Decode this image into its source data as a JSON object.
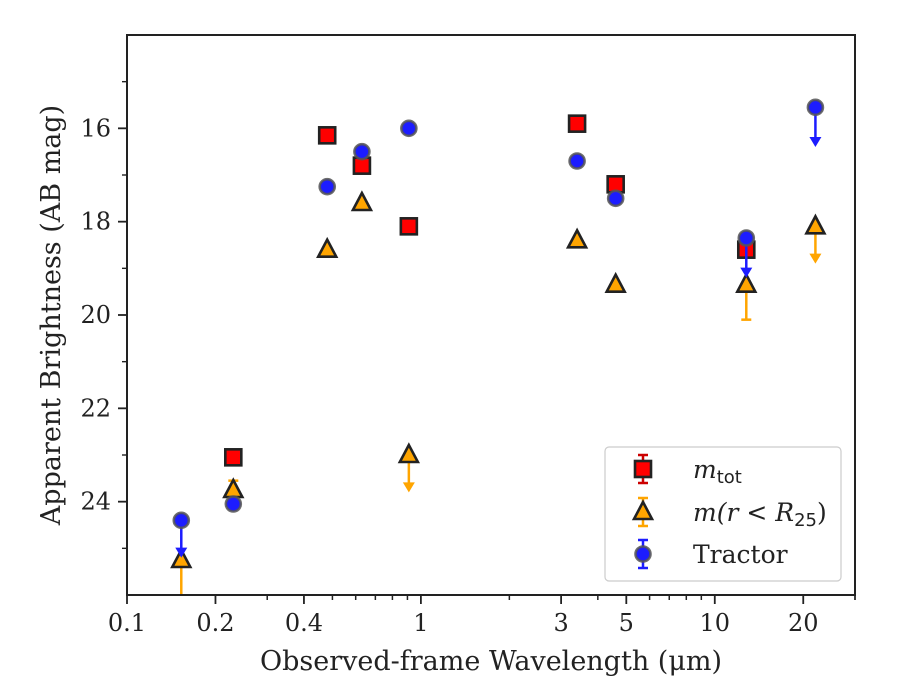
{
  "chart_data": {
    "type": "scatter",
    "xlabel": "Observed-frame Wavelength (μm)",
    "ylabel": "Apparent Brightness (AB mag)",
    "x_scale": "log",
    "xlim": [
      0.1,
      30
    ],
    "ylim": [
      26,
      14
    ],
    "y_inverted": true,
    "grid": false,
    "legend_position": "lower-right",
    "xticks": [
      0.1,
      0.2,
      0.4,
      1,
      3,
      5,
      10,
      20
    ],
    "xtick_labels": [
      "0.1",
      "0.2",
      "0.4",
      "1",
      "3",
      "5",
      "10",
      "20"
    ],
    "yticks": [
      16,
      18,
      20,
      22,
      24
    ],
    "ytick_labels": [
      "16",
      "18",
      "20",
      "22",
      "24"
    ],
    "legend": {
      "m_tot_label": "m",
      "m_tot_sub": "tot",
      "m_r25_label": "m(r < R",
      "m_r25_sub": "25",
      "m_r25_close": ")",
      "tractor_label": "Tractor"
    },
    "series": [
      {
        "name": "m_tot",
        "marker": "square",
        "color": "#ff0000",
        "points": [
          {
            "x": 0.23,
            "y": 23.05
          },
          {
            "x": 0.48,
            "y": 16.15
          },
          {
            "x": 0.63,
            "y": 16.8
          },
          {
            "x": 0.91,
            "y": 18.1
          },
          {
            "x": 3.4,
            "y": 15.9
          },
          {
            "x": 4.6,
            "y": 17.2
          },
          {
            "x": 12.8,
            "y": 18.6
          }
        ]
      },
      {
        "name": "m(r < R25)",
        "marker": "triangle",
        "color": "#ffa500",
        "points": [
          {
            "x": 0.153,
            "y": 25.25,
            "upper_limit": true,
            "err_to": 26.2
          },
          {
            "x": 0.23,
            "y": 23.75,
            "err_to": 23.55
          },
          {
            "x": 0.48,
            "y": 18.6
          },
          {
            "x": 0.63,
            "y": 17.6
          },
          {
            "x": 0.91,
            "y": 23.0,
            "upper_limit": true,
            "err_to": 23.8
          },
          {
            "x": 3.4,
            "y": 18.4
          },
          {
            "x": 4.6,
            "y": 19.35
          },
          {
            "x": 12.8,
            "y": 19.35,
            "err_to": 20.1
          },
          {
            "x": 22.0,
            "y": 18.1,
            "upper_limit": true,
            "err_to": 18.9
          }
        ]
      },
      {
        "name": "Tractor",
        "marker": "circle",
        "color": "#1c1cff",
        "points": [
          {
            "x": 0.153,
            "y": 24.4,
            "upper_limit": true,
            "err_to": 25.2
          },
          {
            "x": 0.23,
            "y": 24.05
          },
          {
            "x": 0.48,
            "y": 17.25
          },
          {
            "x": 0.63,
            "y": 16.5
          },
          {
            "x": 0.91,
            "y": 16.0
          },
          {
            "x": 3.4,
            "y": 16.7
          },
          {
            "x": 4.6,
            "y": 17.5
          },
          {
            "x": 12.8,
            "y": 18.35,
            "upper_limit": true,
            "err_to": 19.2
          },
          {
            "x": 22.0,
            "y": 15.55,
            "upper_limit": true,
            "err_to": 16.4
          }
        ]
      }
    ]
  }
}
